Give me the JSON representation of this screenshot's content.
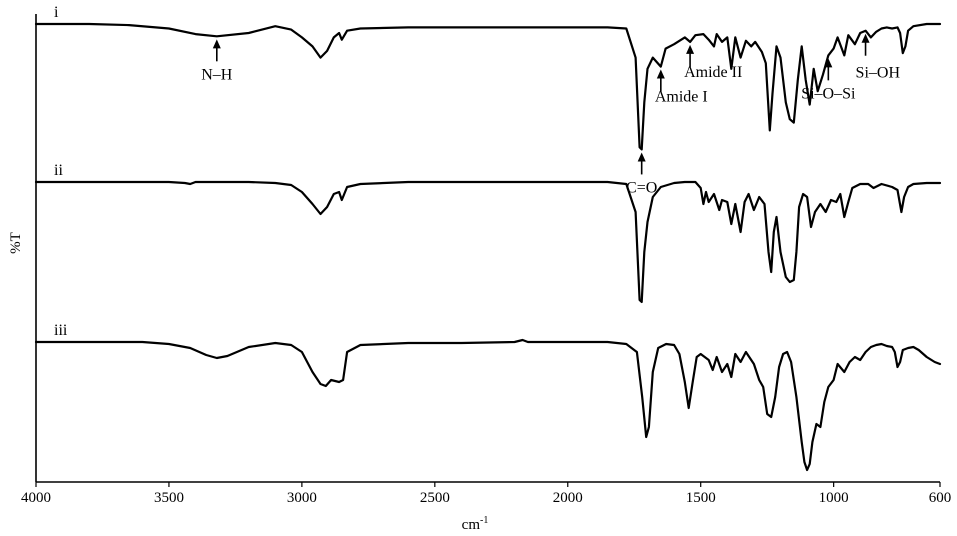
{
  "chart_data": {
    "type": "line",
    "title": "",
    "xlabel": "cm",
    "xlabel_superscript": "-1",
    "ylabel": "%T",
    "xlim": [
      4000,
      600
    ],
    "x_reversed": true,
    "x_ticks": [
      4000,
      3500,
      3000,
      2500,
      2000,
      1500,
      1000,
      600
    ],
    "grid": false,
    "legend": "none",
    "series": [
      {
        "name": "i",
        "points": [
          [
            4000,
            0.0
          ],
          [
            3800,
            0.0
          ],
          [
            3650,
            0.01
          ],
          [
            3500,
            0.04
          ],
          [
            3400,
            0.09
          ],
          [
            3320,
            0.11
          ],
          [
            3200,
            0.08
          ],
          [
            3100,
            0.02
          ],
          [
            3040,
            0.05
          ],
          [
            3000,
            0.12
          ],
          [
            2960,
            0.2
          ],
          [
            2930,
            0.3
          ],
          [
            2905,
            0.24
          ],
          [
            2880,
            0.12
          ],
          [
            2860,
            0.08
          ],
          [
            2850,
            0.14
          ],
          [
            2830,
            0.06
          ],
          [
            2780,
            0.04
          ],
          [
            2600,
            0.03
          ],
          [
            2400,
            0.03
          ],
          [
            2200,
            0.03
          ],
          [
            2000,
            0.03
          ],
          [
            1850,
            0.03
          ],
          [
            1780,
            0.04
          ],
          [
            1745,
            0.3
          ],
          [
            1730,
            1.1
          ],
          [
            1722,
            1.12
          ],
          [
            1712,
            0.7
          ],
          [
            1700,
            0.4
          ],
          [
            1680,
            0.3
          ],
          [
            1650,
            0.38
          ],
          [
            1632,
            0.22
          ],
          [
            1600,
            0.18
          ],
          [
            1560,
            0.12
          ],
          [
            1540,
            0.16
          ],
          [
            1520,
            0.1
          ],
          [
            1490,
            0.09
          ],
          [
            1470,
            0.14
          ],
          [
            1450,
            0.2
          ],
          [
            1440,
            0.09
          ],
          [
            1420,
            0.16
          ],
          [
            1400,
            0.12
          ],
          [
            1385,
            0.4
          ],
          [
            1370,
            0.12
          ],
          [
            1350,
            0.3
          ],
          [
            1330,
            0.15
          ],
          [
            1310,
            0.2
          ],
          [
            1295,
            0.16
          ],
          [
            1270,
            0.25
          ],
          [
            1255,
            0.35
          ],
          [
            1240,
            0.95
          ],
          [
            1230,
            0.62
          ],
          [
            1215,
            0.2
          ],
          [
            1200,
            0.3
          ],
          [
            1180,
            0.7
          ],
          [
            1165,
            0.85
          ],
          [
            1150,
            0.88
          ],
          [
            1135,
            0.5
          ],
          [
            1120,
            0.2
          ],
          [
            1105,
            0.5
          ],
          [
            1090,
            0.72
          ],
          [
            1075,
            0.4
          ],
          [
            1060,
            0.6
          ],
          [
            1040,
            0.45
          ],
          [
            1020,
            0.28
          ],
          [
            1000,
            0.22
          ],
          [
            985,
            0.12
          ],
          [
            960,
            0.28
          ],
          [
            945,
            0.1
          ],
          [
            920,
            0.18
          ],
          [
            900,
            0.08
          ],
          [
            880,
            0.06
          ],
          [
            860,
            0.12
          ],
          [
            840,
            0.07
          ],
          [
            820,
            0.04
          ],
          [
            800,
            0.03
          ],
          [
            780,
            0.04
          ],
          [
            760,
            0.03
          ],
          [
            750,
            0.08
          ],
          [
            740,
            0.26
          ],
          [
            730,
            0.2
          ],
          [
            720,
            0.06
          ],
          [
            700,
            0.02
          ],
          [
            650,
            0.0
          ],
          [
            600,
            0.0
          ]
        ]
      },
      {
        "name": "ii",
        "points": [
          [
            4000,
            0.0
          ],
          [
            3800,
            0.0
          ],
          [
            3500,
            0.0
          ],
          [
            3440,
            0.01
          ],
          [
            3420,
            0.02
          ],
          [
            3400,
            0.0
          ],
          [
            3200,
            0.0
          ],
          [
            3100,
            0.01
          ],
          [
            3040,
            0.03
          ],
          [
            3000,
            0.1
          ],
          [
            2960,
            0.22
          ],
          [
            2930,
            0.32
          ],
          [
            2905,
            0.25
          ],
          [
            2880,
            0.12
          ],
          [
            2860,
            0.1
          ],
          [
            2850,
            0.18
          ],
          [
            2830,
            0.05
          ],
          [
            2780,
            0.02
          ],
          [
            2600,
            0.0
          ],
          [
            2400,
            0.0
          ],
          [
            2200,
            0.0
          ],
          [
            2000,
            0.0
          ],
          [
            1850,
            0.0
          ],
          [
            1780,
            0.02
          ],
          [
            1745,
            0.3
          ],
          [
            1730,
            1.18
          ],
          [
            1722,
            1.2
          ],
          [
            1712,
            0.7
          ],
          [
            1700,
            0.4
          ],
          [
            1680,
            0.15
          ],
          [
            1650,
            0.05
          ],
          [
            1600,
            0.01
          ],
          [
            1560,
            0.0
          ],
          [
            1520,
            0.0
          ],
          [
            1500,
            0.06
          ],
          [
            1490,
            0.22
          ],
          [
            1480,
            0.1
          ],
          [
            1470,
            0.2
          ],
          [
            1450,
            0.12
          ],
          [
            1430,
            0.28
          ],
          [
            1420,
            0.18
          ],
          [
            1400,
            0.2
          ],
          [
            1385,
            0.42
          ],
          [
            1370,
            0.22
          ],
          [
            1350,
            0.5
          ],
          [
            1335,
            0.2
          ],
          [
            1320,
            0.12
          ],
          [
            1300,
            0.28
          ],
          [
            1280,
            0.15
          ],
          [
            1260,
            0.22
          ],
          [
            1245,
            0.7
          ],
          [
            1235,
            0.9
          ],
          [
            1225,
            0.5
          ],
          [
            1215,
            0.35
          ],
          [
            1200,
            0.7
          ],
          [
            1180,
            0.95
          ],
          [
            1165,
            1.0
          ],
          [
            1150,
            0.98
          ],
          [
            1140,
            0.7
          ],
          [
            1130,
            0.25
          ],
          [
            1115,
            0.12
          ],
          [
            1100,
            0.15
          ],
          [
            1085,
            0.45
          ],
          [
            1070,
            0.3
          ],
          [
            1050,
            0.22
          ],
          [
            1030,
            0.3
          ],
          [
            1010,
            0.18
          ],
          [
            990,
            0.2
          ],
          [
            975,
            0.12
          ],
          [
            960,
            0.35
          ],
          [
            945,
            0.2
          ],
          [
            930,
            0.06
          ],
          [
            900,
            0.02
          ],
          [
            870,
            0.02
          ],
          [
            850,
            0.06
          ],
          [
            820,
            0.02
          ],
          [
            780,
            0.05
          ],
          [
            760,
            0.08
          ],
          [
            745,
            0.3
          ],
          [
            735,
            0.15
          ],
          [
            720,
            0.05
          ],
          [
            700,
            0.02
          ],
          [
            650,
            0.01
          ],
          [
            600,
            0.01
          ]
        ]
      },
      {
        "name": "iii",
        "points": [
          [
            4000,
            0.0
          ],
          [
            3800,
            0.0
          ],
          [
            3600,
            0.0
          ],
          [
            3500,
            0.02
          ],
          [
            3420,
            0.06
          ],
          [
            3360,
            0.13
          ],
          [
            3320,
            0.16
          ],
          [
            3280,
            0.14
          ],
          [
            3200,
            0.05
          ],
          [
            3100,
            0.01
          ],
          [
            3040,
            0.03
          ],
          [
            3000,
            0.1
          ],
          [
            2960,
            0.3
          ],
          [
            2930,
            0.42
          ],
          [
            2910,
            0.44
          ],
          [
            2890,
            0.38
          ],
          [
            2860,
            0.4
          ],
          [
            2845,
            0.38
          ],
          [
            2830,
            0.1
          ],
          [
            2780,
            0.03
          ],
          [
            2600,
            0.01
          ],
          [
            2400,
            0.01
          ],
          [
            2200,
            0.0
          ],
          [
            2170,
            -0.02
          ],
          [
            2150,
            0.0
          ],
          [
            2000,
            0.0
          ],
          [
            1850,
            0.0
          ],
          [
            1780,
            0.02
          ],
          [
            1740,
            0.1
          ],
          [
            1720,
            0.55
          ],
          [
            1705,
            0.95
          ],
          [
            1695,
            0.85
          ],
          [
            1680,
            0.3
          ],
          [
            1660,
            0.06
          ],
          [
            1630,
            0.02
          ],
          [
            1600,
            0.03
          ],
          [
            1580,
            0.12
          ],
          [
            1560,
            0.4
          ],
          [
            1545,
            0.66
          ],
          [
            1530,
            0.4
          ],
          [
            1515,
            0.15
          ],
          [
            1500,
            0.12
          ],
          [
            1470,
            0.18
          ],
          [
            1455,
            0.28
          ],
          [
            1440,
            0.15
          ],
          [
            1420,
            0.3
          ],
          [
            1400,
            0.22
          ],
          [
            1385,
            0.35
          ],
          [
            1370,
            0.12
          ],
          [
            1350,
            0.2
          ],
          [
            1330,
            0.1
          ],
          [
            1300,
            0.22
          ],
          [
            1280,
            0.38
          ],
          [
            1265,
            0.45
          ],
          [
            1250,
            0.72
          ],
          [
            1235,
            0.75
          ],
          [
            1220,
            0.55
          ],
          [
            1205,
            0.25
          ],
          [
            1190,
            0.12
          ],
          [
            1175,
            0.1
          ],
          [
            1160,
            0.2
          ],
          [
            1140,
            0.55
          ],
          [
            1120,
            1.0
          ],
          [
            1110,
            1.2
          ],
          [
            1100,
            1.28
          ],
          [
            1090,
            1.22
          ],
          [
            1080,
            1.0
          ],
          [
            1065,
            0.82
          ],
          [
            1050,
            0.85
          ],
          [
            1035,
            0.6
          ],
          [
            1020,
            0.45
          ],
          [
            1000,
            0.38
          ],
          [
            985,
            0.22
          ],
          [
            960,
            0.3
          ],
          [
            940,
            0.2
          ],
          [
            920,
            0.15
          ],
          [
            900,
            0.18
          ],
          [
            880,
            0.1
          ],
          [
            860,
            0.05
          ],
          [
            840,
            0.03
          ],
          [
            820,
            0.02
          ],
          [
            800,
            0.04
          ],
          [
            780,
            0.05
          ],
          [
            770,
            0.1
          ],
          [
            760,
            0.25
          ],
          [
            750,
            0.2
          ],
          [
            740,
            0.08
          ],
          [
            720,
            0.06
          ],
          [
            700,
            0.05
          ],
          [
            680,
            0.08
          ],
          [
            650,
            0.15
          ],
          [
            620,
            0.2
          ],
          [
            600,
            0.22
          ]
        ]
      }
    ],
    "annotations": [
      {
        "label": "N–H",
        "x": 3320,
        "trace": "i"
      },
      {
        "label": "C=O",
        "x": 1722,
        "trace": "i"
      },
      {
        "label": "Amide I",
        "x": 1650,
        "trace": "i"
      },
      {
        "label": "Amide II",
        "x": 1540,
        "trace": "i"
      },
      {
        "label": "Si–O–Si",
        "x": 1020,
        "trace": "i"
      },
      {
        "label": "Si–OH",
        "x": 880,
        "trace": "i"
      }
    ]
  }
}
